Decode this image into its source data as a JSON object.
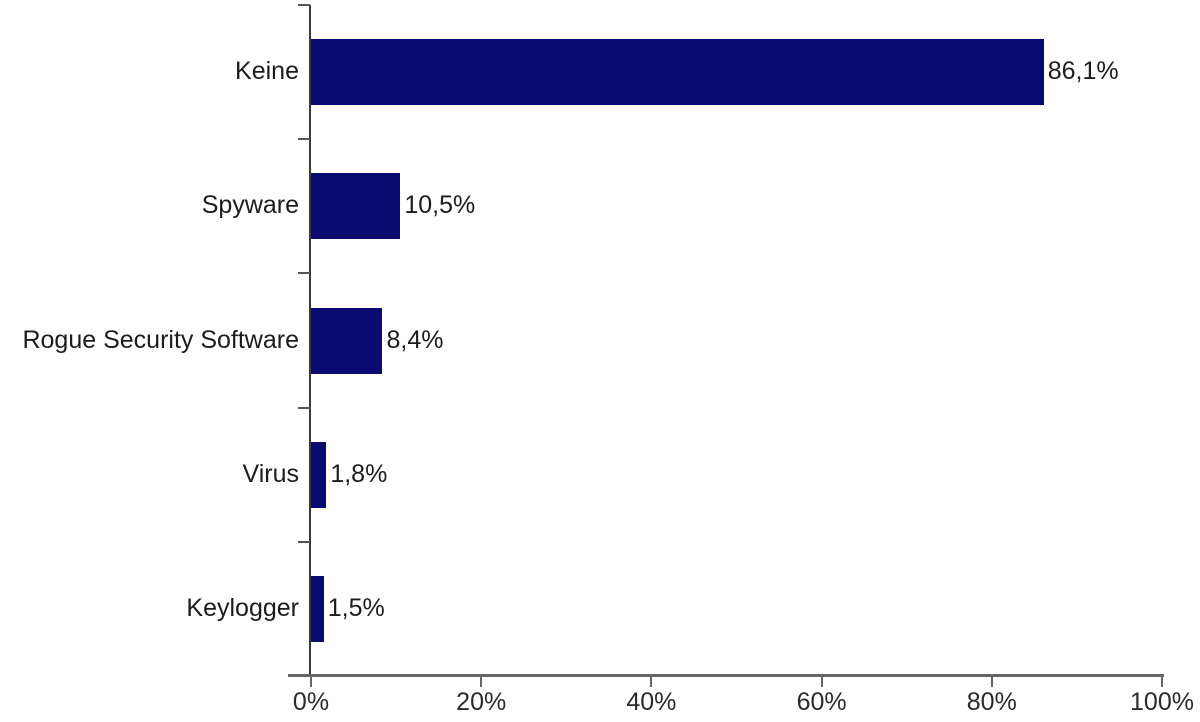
{
  "chart_data": {
    "type": "bar",
    "orientation": "horizontal",
    "title": "",
    "xlabel": "",
    "ylabel": "",
    "categories": [
      "Keine",
      "Spyware",
      "Rogue Security Software",
      "Virus",
      "Keylogger"
    ],
    "values": [
      86.1,
      10.5,
      8.4,
      1.8,
      1.5
    ],
    "value_labels": [
      "86,1%",
      "10,5%",
      "8,4%",
      "1,8%",
      "1,5%"
    ],
    "x_tick_values": [
      0,
      20,
      40,
      60,
      80,
      100
    ],
    "x_tick_labels": [
      "0%",
      "20%",
      "40%",
      "60%",
      "80%",
      "100%"
    ],
    "xlim": [
      0,
      100
    ],
    "grid": false,
    "legend": null,
    "colors": {
      "bar": "#0a0a70",
      "x_axis": "#666666",
      "y_axis": "#3a3a3a",
      "tick": "#666666",
      "boundary_tick": "#555555",
      "label_text": "#1c1c1c",
      "tick_text": "#2b2b2b",
      "background": "#ffffff"
    }
  }
}
